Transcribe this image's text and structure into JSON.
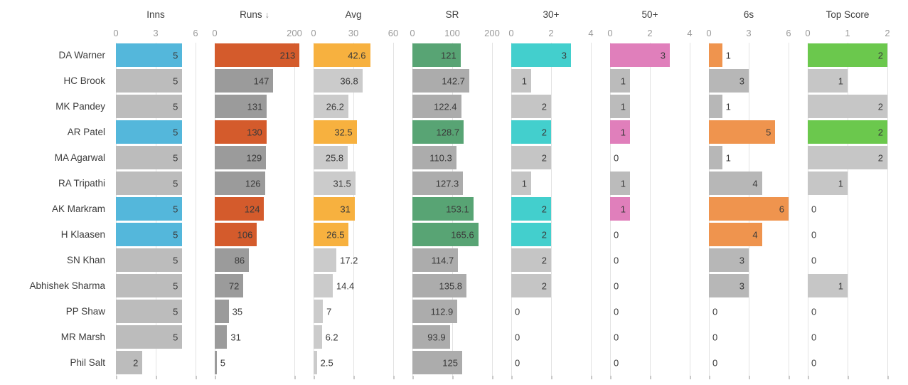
{
  "chart_data": {
    "type": "bar",
    "layout": "multi-panel horizontal bar table",
    "sorted_by": "Runs",
    "sort_indicator": "↓",
    "legend_position": "none",
    "grid": true,
    "categories": [
      "DA Warner",
      "HC Brook",
      "MK Pandey",
      "AR Patel",
      "MA Agarwal",
      "RA Tripathi",
      "AK Markram",
      "H Klaasen",
      "SN Khan",
      "Abhishek Sharma",
      "PP Shaw",
      "MR Marsh",
      "Phil Salt"
    ],
    "highlighted_rows": [
      "DA Warner",
      "AR Patel",
      "AK Markram",
      "H Klaasen"
    ],
    "panels": [
      {
        "label": "Inns",
        "sorted": false,
        "ticks": [
          0,
          3,
          6
        ],
        "axis_max": 6,
        "highlight_color": "#54B7DB",
        "base_color": "#BCBCBC",
        "values": [
          5,
          5,
          5,
          5,
          5,
          5,
          5,
          5,
          5,
          5,
          5,
          5,
          2
        ]
      },
      {
        "label": "Runs",
        "sorted": true,
        "ticks": [
          0,
          200
        ],
        "axis_max": 200,
        "highlight_color": "#D45B2C",
        "base_color": "#9B9B9B",
        "values": [
          213,
          147,
          131,
          130,
          129,
          126,
          124,
          106,
          86,
          72,
          35,
          31,
          5
        ]
      },
      {
        "label": "Avg",
        "sorted": false,
        "ticks": [
          0,
          30,
          60
        ],
        "axis_max": 60,
        "highlight_color": "#F7B13F",
        "base_color": "#CBCBCB",
        "values": [
          42.6,
          36.8,
          26.2,
          32.5,
          25.8,
          31.5,
          31,
          26.5,
          17.2,
          14.4,
          7,
          6.2,
          2.5
        ]
      },
      {
        "label": "SR",
        "sorted": false,
        "ticks": [
          0,
          100,
          200
        ],
        "axis_max": 200,
        "highlight_color": "#58A474",
        "base_color": "#ACACAC",
        "values": [
          121,
          142.7,
          122.4,
          128.7,
          110.3,
          127.3,
          153.1,
          165.6,
          114.7,
          135.8,
          112.9,
          93.9,
          125
        ]
      },
      {
        "label": "30+",
        "sorted": false,
        "ticks": [
          0,
          2,
          4
        ],
        "axis_max": 4,
        "highlight_color": "#43CFCD",
        "base_color": "#C5C5C5",
        "values": [
          3,
          1,
          2,
          2,
          2,
          1,
          2,
          2,
          2,
          2,
          0,
          0,
          0
        ]
      },
      {
        "label": "50+",
        "sorted": false,
        "ticks": [
          0,
          2,
          4
        ],
        "axis_max": 4,
        "highlight_color": "#E07FBB",
        "base_color": "#BBBBBB",
        "values": [
          3,
          1,
          1,
          1,
          0,
          1,
          1,
          0,
          0,
          0,
          0,
          0,
          0
        ]
      },
      {
        "label": "6s",
        "sorted": false,
        "ticks": [
          0,
          3,
          6
        ],
        "axis_max": 6,
        "highlight_color": "#EF944E",
        "base_color": "#B7B7B7",
        "values": [
          1,
          3,
          1,
          5,
          1,
          4,
          6,
          4,
          3,
          3,
          0,
          0,
          0
        ]
      },
      {
        "label": "Top Score",
        "sorted": false,
        "ticks": [
          0,
          1,
          2
        ],
        "axis_max": 2,
        "highlight_color": "#6BC84D",
        "base_color": "#C6C6C6",
        "values": [
          2,
          1,
          2,
          2,
          2,
          1,
          0,
          0,
          0,
          1,
          0,
          0,
          0
        ]
      }
    ]
  },
  "colors": {
    "background": "#FFFFFF",
    "gridline": "#E3E3E3",
    "tick_stub": "#C9C9C9",
    "axis_text": "#9A9A9A",
    "label_text": "#3C3C3C",
    "value_text": "#3A3A3A"
  }
}
